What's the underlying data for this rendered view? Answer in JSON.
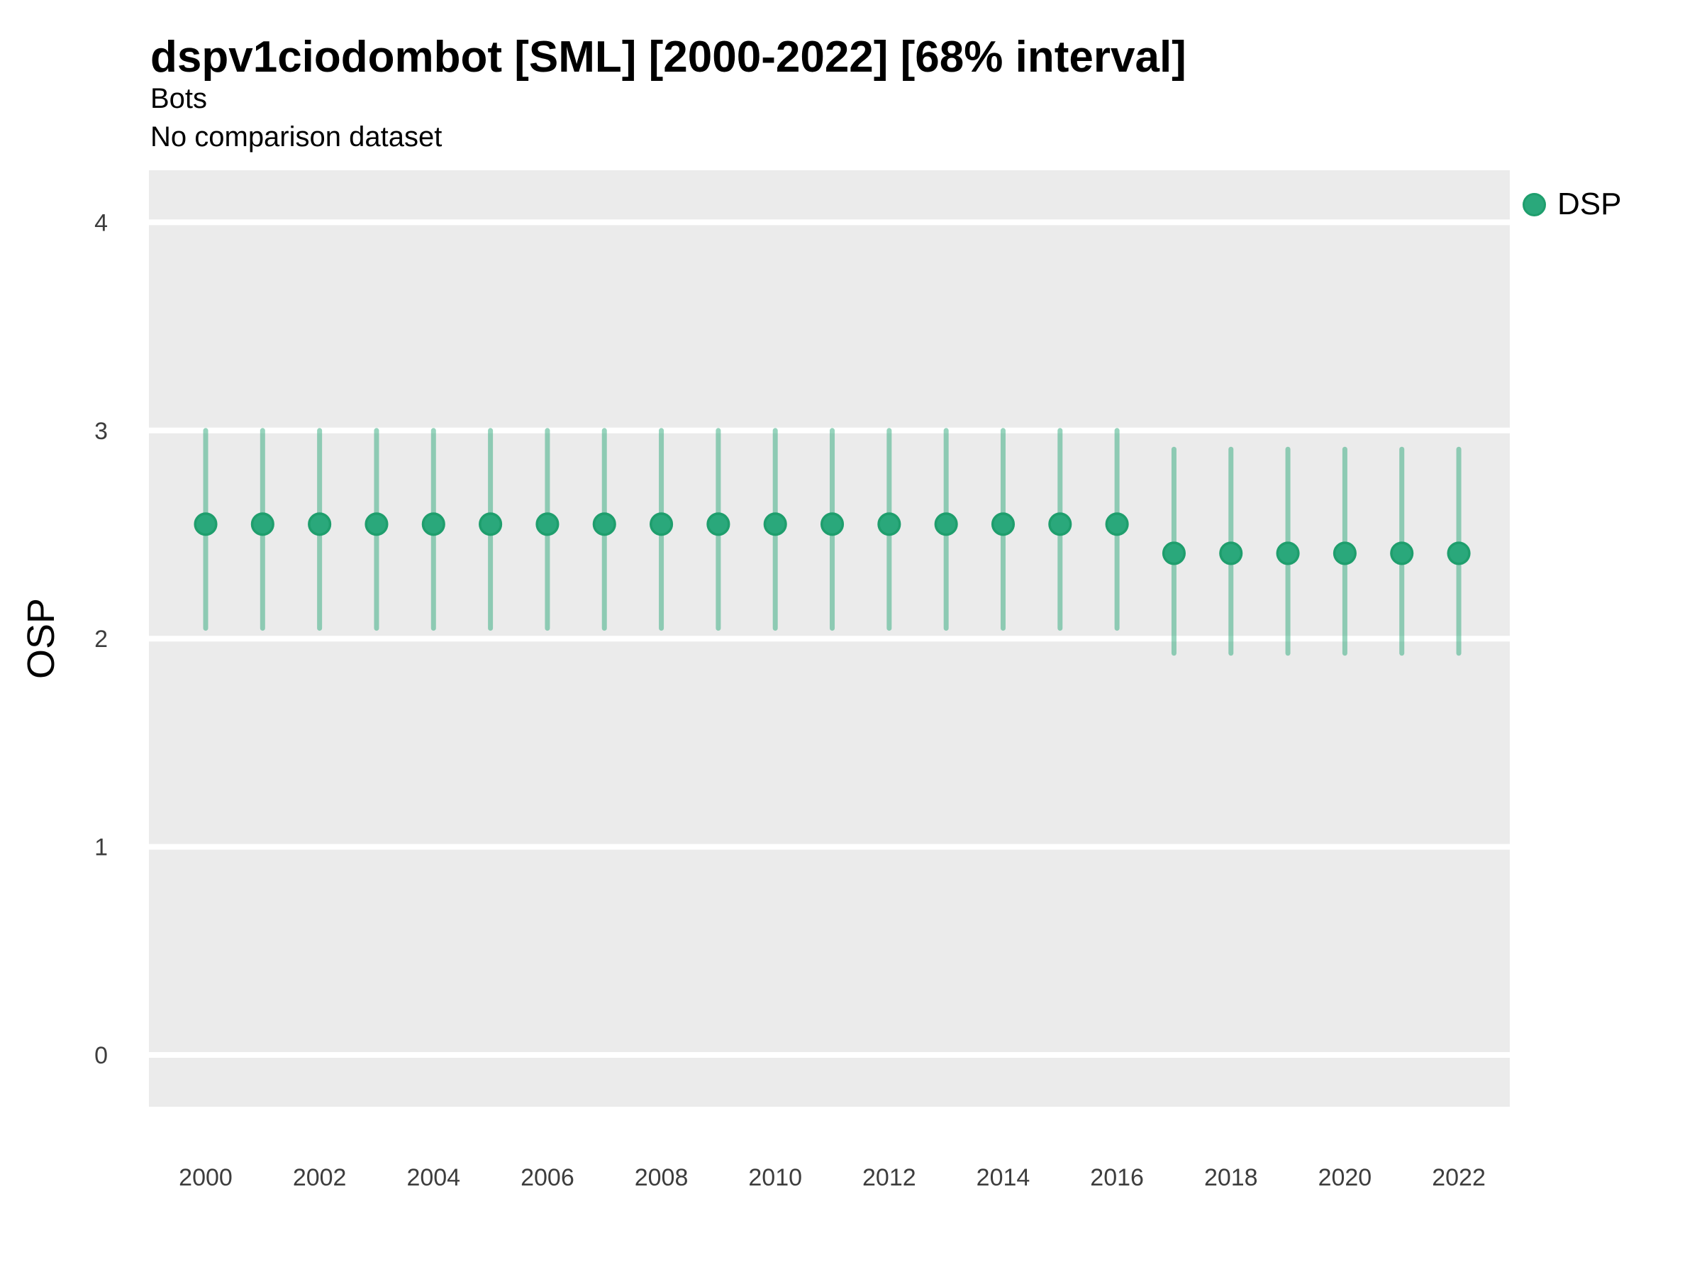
{
  "header": {
    "title": "dspv1ciodombot [SML] [2000-2022] [68% interval]",
    "subtitle": "Bots",
    "subtitle2": "No comparison dataset"
  },
  "legend": {
    "position": "right-top",
    "items": [
      {
        "label": "DSP",
        "marker": "filled-circle"
      }
    ]
  },
  "colors": {
    "point_fill": "#2aa87b",
    "point_edge": "#1f9e6d",
    "interval_line": "rgba(47,169,124,0.5)",
    "panel_background": "#ebebeb",
    "gridline": "#ffffff",
    "title_text": "#000000",
    "tick_text": "#3d3d3d"
  },
  "chart_data": {
    "type": "pointrange",
    "title": "dspv1ciodombot [SML] [2000-2022] [68% interval]",
    "subtitle": "Bots\nNo comparison dataset",
    "interval_level": "68%",
    "xlabel": "",
    "ylabel": "OSP",
    "grid": "major-horizontal-only",
    "legend_position": "right-top",
    "ylim": [
      -0.25,
      4.25
    ],
    "yticks": [
      0,
      1,
      2,
      3,
      4
    ],
    "xticks": [
      2000,
      2002,
      2004,
      2006,
      2008,
      2010,
      2012,
      2014,
      2016,
      2018,
      2020,
      2022
    ],
    "x": [
      2000,
      2001,
      2002,
      2003,
      2004,
      2005,
      2006,
      2007,
      2008,
      2009,
      2010,
      2011,
      2012,
      2013,
      2014,
      2015,
      2016,
      2017,
      2018,
      2019,
      2020,
      2021,
      2022
    ],
    "series": [
      {
        "name": "DSP",
        "point": [
          2.55,
          2.55,
          2.55,
          2.55,
          2.55,
          2.55,
          2.55,
          2.55,
          2.55,
          2.55,
          2.55,
          2.55,
          2.55,
          2.55,
          2.55,
          2.55,
          2.55,
          2.41,
          2.41,
          2.41,
          2.41,
          2.41,
          2.41
        ],
        "lower": [
          2.05,
          2.05,
          2.05,
          2.05,
          2.05,
          2.05,
          2.05,
          2.05,
          2.05,
          2.05,
          2.05,
          2.05,
          2.05,
          2.05,
          2.05,
          2.05,
          2.05,
          1.93,
          1.93,
          1.93,
          1.93,
          1.93,
          1.93
        ],
        "upper": [
          3.0,
          3.0,
          3.0,
          3.0,
          3.0,
          3.0,
          3.0,
          3.0,
          3.0,
          3.0,
          3.0,
          3.0,
          3.0,
          3.0,
          3.0,
          3.0,
          3.0,
          2.91,
          2.91,
          2.91,
          2.91,
          2.91,
          2.91
        ]
      }
    ]
  }
}
